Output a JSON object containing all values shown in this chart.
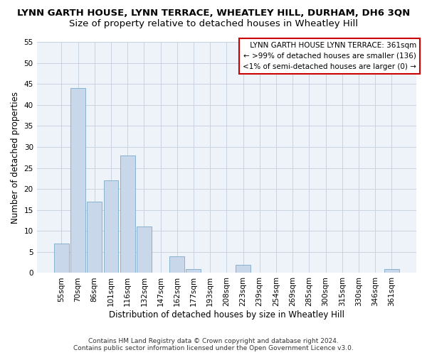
{
  "title": "LYNN GARTH HOUSE, LYNN TERRACE, WHEATLEY HILL, DURHAM, DH6 3QN",
  "subtitle": "Size of property relative to detached houses in Wheatley Hill",
  "xlabel": "Distribution of detached houses by size in Wheatley Hill",
  "ylabel": "Number of detached properties",
  "bins": [
    "55sqm",
    "70sqm",
    "86sqm",
    "101sqm",
    "116sqm",
    "132sqm",
    "147sqm",
    "162sqm",
    "177sqm",
    "193sqm",
    "208sqm",
    "223sqm",
    "239sqm",
    "254sqm",
    "269sqm",
    "285sqm",
    "300sqm",
    "315sqm",
    "330sqm",
    "346sqm",
    "361sqm"
  ],
  "values": [
    7,
    44,
    17,
    22,
    28,
    11,
    0,
    4,
    1,
    0,
    0,
    2,
    0,
    0,
    0,
    0,
    0,
    0,
    0,
    0,
    1
  ],
  "bar_color": "#c8d8ea",
  "bar_edge_color": "#7aaac8",
  "grid_color": "#c8d4e0",
  "background_color": "#edf3f8",
  "annotation_box_color": "#cc0000",
  "annotation_text": " LYNN GARTH HOUSE LYNN TERRACE: 361sqm\n← >99% of detached houses are smaller (136)\n<1% of semi-detached houses are larger (0) →",
  "annotation_fontsize": 7.5,
  "title_fontsize": 9.5,
  "subtitle_fontsize": 9.5,
  "xlabel_fontsize": 8.5,
  "ylabel_fontsize": 8.5,
  "tick_fontsize": 7.5,
  "footer_text": "Contains HM Land Registry data © Crown copyright and database right 2024.\nContains public sector information licensed under the Open Government Licence v3.0.",
  "footer_fontsize": 6.5,
  "ylim": [
    0,
    55
  ],
  "yticks": [
    0,
    5,
    10,
    15,
    20,
    25,
    30,
    35,
    40,
    45,
    50,
    55
  ]
}
